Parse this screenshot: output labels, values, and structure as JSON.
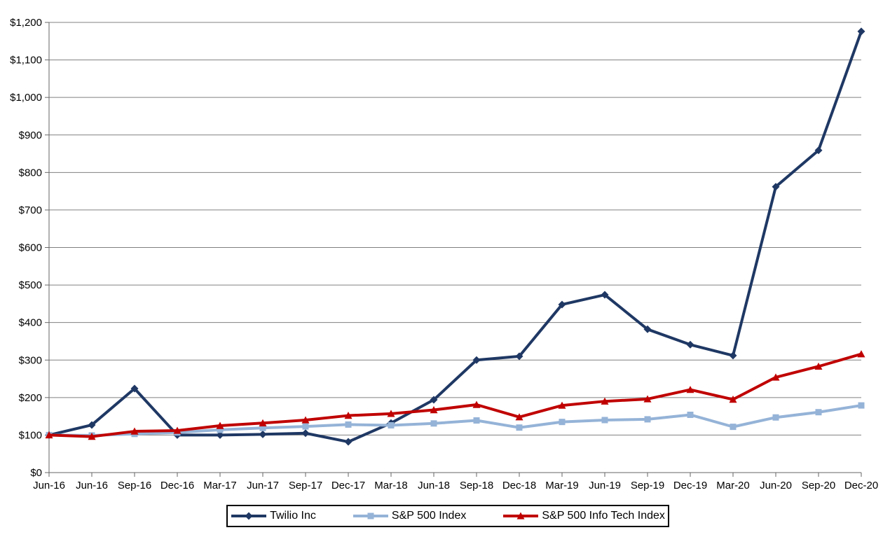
{
  "chart_data": {
    "type": "line",
    "title": "",
    "xlabel": "",
    "ylabel": "",
    "categories": [
      "Jun-16",
      "Jun-16",
      "Sep-16",
      "Dec-16",
      "Mar-17",
      "Jun-17",
      "Sep-17",
      "Dec-17",
      "Mar-18",
      "Jun-18",
      "Sep-18",
      "Dec-18",
      "Mar-19",
      "Jun-19",
      "Sep-19",
      "Dec-19",
      "Mar-20",
      "Jun-20",
      "Sep-20",
      "Dec-20"
    ],
    "series": [
      {
        "name": "Twilio Inc",
        "color": "#1F3864",
        "marker": "diamond",
        "values": [
          100,
          127,
          224,
          100,
          100,
          102,
          105,
          82,
          132,
          194,
          300,
          310,
          448,
          474,
          382,
          341,
          312,
          762,
          859,
          1176
        ]
      },
      {
        "name": "S&P 500 Index",
        "color": "#95B3D7",
        "marker": "square",
        "values": [
          100,
          99,
          103,
          107,
          114,
          119,
          123,
          128,
          126,
          131,
          139,
          120,
          135,
          140,
          142,
          154,
          122,
          147,
          161,
          179
        ]
      },
      {
        "name": "S&P 500 Info Tech Index",
        "color": "#C00000",
        "marker": "triangle",
        "values": [
          100,
          96,
          110,
          112,
          125,
          132,
          140,
          152,
          157,
          167,
          181,
          148,
          179,
          190,
          196,
          221,
          195,
          254,
          283,
          316
        ]
      }
    ],
    "y_axis": {
      "min": 0,
      "max": 1200,
      "step": 100,
      "tick_labels": [
        "$0",
        "$100",
        "$200",
        "$300",
        "$400",
        "$500",
        "$600",
        "$700",
        "$800",
        "$900",
        "$1,000",
        "$1,100",
        "$1,200"
      ]
    },
    "grid": true,
    "legend_position": "bottom"
  },
  "colors": {
    "background": "#FFFFFF",
    "gridline": "#808080",
    "axis": "#666666",
    "text": "#000000",
    "legend_border": "#000000",
    "series_navy": "#1F3864",
    "series_light_blue": "#95B3D7",
    "series_dark_red": "#C00000"
  }
}
